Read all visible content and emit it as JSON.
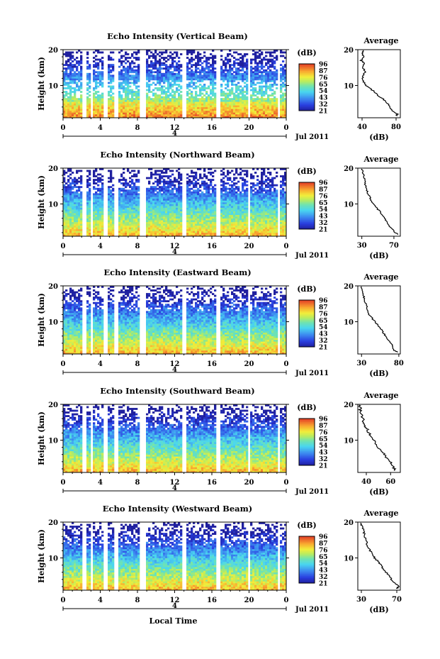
{
  "chart_data": {
    "type": "heatmap",
    "x_label": "Local Time",
    "date_label": "Jul 2011",
    "day_marker": "4",
    "x_ticks": [
      "0",
      "4",
      "8",
      "12",
      "16",
      "20",
      "0"
    ],
    "x_range": [
      0,
      24
    ],
    "y_label": "Height (km)",
    "y_ticks": [
      "10",
      "20"
    ],
    "y_range": [
      1,
      20
    ],
    "colorbar_unit": "(dB)",
    "colorbar_levels": [
      "96",
      "87",
      "76",
      "65",
      "54",
      "43",
      "32",
      "21"
    ],
    "avg_title": "Average",
    "avg_xlabel": "(dB)",
    "data_gaps_hours": [
      [
        2.1,
        2.5
      ],
      [
        2.9,
        3.3
      ],
      [
        4.3,
        4.7
      ],
      [
        5.5,
        5.9
      ],
      [
        8.3,
        8.8
      ],
      [
        12.9,
        13.2
      ],
      [
        16.5,
        16.8
      ],
      [
        19.8,
        20.1
      ],
      [
        23.0,
        23.3
      ]
    ],
    "panels": [
      {
        "title": "Echo Intensity (Vertical Beam)",
        "avg_xticks": [
          "40",
          "80"
        ],
        "avg_xlim": [
          35,
          85
        ],
        "average_profile": {
          "height_km": [
            1.5,
            2,
            3,
            4,
            5,
            6,
            7,
            8,
            9,
            10,
            11,
            12,
            13,
            14,
            15,
            16,
            17,
            18,
            19,
            19.8
          ],
          "db": [
            80,
            82,
            76,
            72,
            70,
            66,
            60,
            56,
            50,
            45,
            42,
            41,
            42,
            44,
            40,
            43,
            39,
            42,
            40,
            41
          ]
        }
      },
      {
        "title": "Echo Intensity (Northward Beam)",
        "avg_xticks": [
          "30",
          "70"
        ],
        "avg_xlim": [
          25,
          78
        ],
        "average_profile": {
          "height_km": [
            1.5,
            2,
            3,
            4,
            5,
            6,
            7,
            8,
            9,
            10,
            11,
            12,
            13,
            14,
            15,
            16,
            17,
            18,
            19,
            19.8
          ],
          "db": [
            75,
            72,
            68,
            64,
            62,
            58,
            55,
            52,
            48,
            44,
            42,
            40,
            37,
            36,
            35,
            34,
            33,
            32,
            31,
            30
          ]
        }
      },
      {
        "title": "Echo Intensity (Eastward Beam)",
        "avg_xticks": [
          "30",
          "80"
        ],
        "avg_xlim": [
          25,
          82
        ],
        "average_profile": {
          "height_km": [
            1.5,
            2,
            3,
            4,
            5,
            6,
            7,
            8,
            9,
            10,
            11,
            12,
            13,
            14,
            15,
            16,
            17,
            18,
            19,
            19.8
          ],
          "db": [
            78,
            74,
            72,
            69,
            65,
            62,
            59,
            56,
            52,
            48,
            44,
            40,
            38,
            37,
            36,
            34,
            33,
            32,
            31,
            30
          ]
        }
      },
      {
        "title": "Echo Intensity (Southward Beam)",
        "avg_xticks": [
          "40",
          "60"
        ],
        "avg_xlim": [
          33,
          68
        ],
        "average_profile": {
          "height_km": [
            1.5,
            2,
            3,
            4,
            5,
            6,
            7,
            8,
            9,
            10,
            11,
            12,
            13,
            14,
            15,
            16,
            17,
            18,
            19,
            19.8
          ],
          "db": [
            64,
            63,
            62,
            60,
            57,
            55,
            52,
            50,
            48,
            46,
            44,
            42,
            41,
            39,
            38,
            37,
            36,
            35,
            35,
            34
          ]
        }
      },
      {
        "title": "Echo Intensity (Westward Beam)",
        "avg_xticks": [
          "30",
          "70"
        ],
        "avg_xlim": [
          26,
          74
        ],
        "average_profile": {
          "height_km": [
            1.5,
            2,
            3,
            4,
            5,
            6,
            7,
            8,
            9,
            10,
            11,
            12,
            13,
            14,
            15,
            16,
            17,
            18,
            19,
            19.8
          ],
          "db": [
            70,
            72,
            68,
            64,
            61,
            58,
            55,
            52,
            49,
            45,
            42,
            40,
            38,
            36,
            36,
            34,
            33,
            32,
            30,
            29
          ]
        }
      }
    ]
  }
}
